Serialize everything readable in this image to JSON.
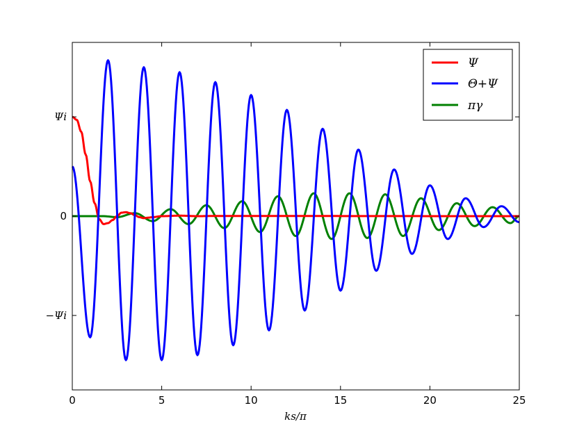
{
  "chart_data": {
    "type": "line",
    "title": "",
    "xlabel": "ks/π",
    "ylabel": "",
    "xlim": [
      0,
      25
    ],
    "ylim": [
      -1.75,
      1.75
    ],
    "xticks": [
      {
        "value": 0,
        "label": "0"
      },
      {
        "value": 5,
        "label": "5"
      },
      {
        "value": 10,
        "label": "10"
      },
      {
        "value": 15,
        "label": "15"
      },
      {
        "value": 20,
        "label": "20"
      },
      {
        "value": 25,
        "label": "25"
      }
    ],
    "yticks": [
      {
        "value": 1,
        "label": "Ψi"
      },
      {
        "value": 0,
        "label": "0"
      },
      {
        "value": -1,
        "label": "−Ψi"
      }
    ],
    "grid": false,
    "legend_position": "top-right",
    "series": [
      {
        "name": "Ψ",
        "color": "#ff0000",
        "points": [
          [
            0,
            1.0
          ],
          [
            0.25,
            0.97
          ],
          [
            0.5,
            0.85
          ],
          [
            0.75,
            0.62
          ],
          [
            1.0,
            0.35
          ],
          [
            1.25,
            0.13
          ],
          [
            1.5,
            -0.03
          ],
          [
            1.75,
            -0.08
          ],
          [
            2.0,
            -0.07
          ],
          [
            2.25,
            -0.04
          ],
          [
            2.5,
            0.0
          ],
          [
            2.75,
            0.035
          ],
          [
            3.0,
            0.04
          ],
          [
            3.25,
            0.03
          ],
          [
            3.5,
            0.01
          ],
          [
            3.75,
            -0.01
          ],
          [
            4.0,
            -0.02
          ],
          [
            4.25,
            -0.015
          ],
          [
            4.5,
            -0.01
          ],
          [
            5.0,
            0.0
          ],
          [
            6.0,
            0.005
          ],
          [
            7.0,
            0.0
          ],
          [
            8.0,
            0.002
          ],
          [
            25.0,
            0.0
          ]
        ]
      },
      {
        "name": "Θ+Ψ",
        "color": "#0000ff",
        "peaks": [
          [
            0,
            0.5
          ],
          [
            1.0,
            -1.22
          ],
          [
            2.0,
            1.57
          ],
          [
            3.0,
            -1.45
          ],
          [
            4.0,
            1.5
          ],
          [
            5.0,
            -1.45
          ],
          [
            6.0,
            1.45
          ],
          [
            7.0,
            -1.4
          ],
          [
            8.0,
            1.35
          ],
          [
            9.0,
            -1.3
          ],
          [
            10.0,
            1.22
          ],
          [
            11.0,
            -1.15
          ],
          [
            12.0,
            1.07
          ],
          [
            13.0,
            -0.95
          ],
          [
            14.0,
            0.88
          ],
          [
            15.0,
            -0.75
          ],
          [
            16.0,
            0.67
          ],
          [
            17.0,
            -0.55
          ],
          [
            18.0,
            0.47
          ],
          [
            19.0,
            -0.38
          ],
          [
            20.0,
            0.31
          ],
          [
            21.0,
            -0.23
          ],
          [
            22.0,
            0.18
          ],
          [
            23.0,
            -0.11
          ],
          [
            24.0,
            0.1
          ],
          [
            25.0,
            -0.06
          ]
        ]
      },
      {
        "name": "πγ",
        "color": "#008000",
        "peaks": [
          [
            0,
            0.0
          ],
          [
            1.7,
            0.0
          ],
          [
            2.5,
            -0.01
          ],
          [
            3.5,
            0.03
          ],
          [
            4.5,
            -0.05
          ],
          [
            5.5,
            0.07
          ],
          [
            6.5,
            -0.08
          ],
          [
            7.5,
            0.11
          ],
          [
            8.5,
            -0.12
          ],
          [
            9.5,
            0.15
          ],
          [
            10.5,
            -0.16
          ],
          [
            11.5,
            0.2
          ],
          [
            12.5,
            -0.2
          ],
          [
            13.5,
            0.23
          ],
          [
            14.5,
            -0.23
          ],
          [
            15.5,
            0.23
          ],
          [
            16.5,
            -0.22
          ],
          [
            17.5,
            0.22
          ],
          [
            18.5,
            -0.2
          ],
          [
            19.5,
            0.18
          ],
          [
            20.5,
            -0.14
          ],
          [
            21.5,
            0.13
          ],
          [
            22.5,
            -0.1
          ],
          [
            23.5,
            0.09
          ],
          [
            24.5,
            -0.07
          ],
          [
            25.0,
            0.0
          ]
        ]
      }
    ]
  }
}
